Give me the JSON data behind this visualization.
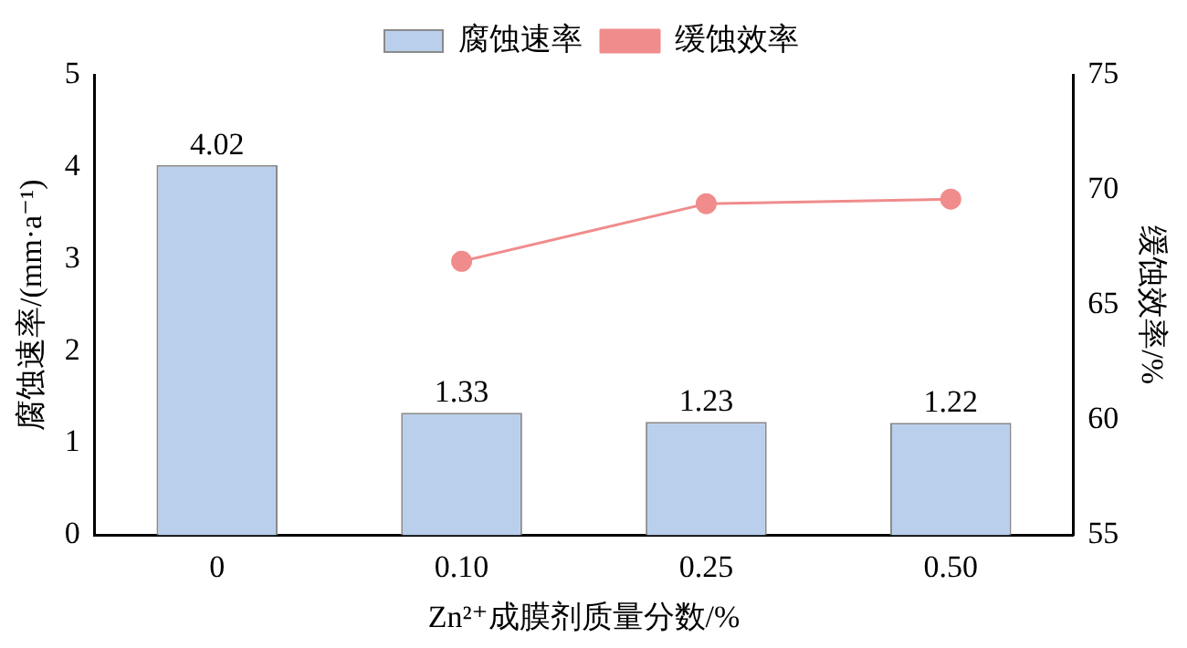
{
  "chart_data": {
    "type": "bar",
    "xlabel": "Zn²⁺成膜剂质量分数/%",
    "ylabel": "腐蚀速率/(mm·a⁻¹)",
    "y2label": "缓蚀效率/%",
    "categories": [
      "0",
      "0.10",
      "0.25",
      "0.50"
    ],
    "series": [
      {
        "name": "腐蚀速率",
        "color": "#b9cfec",
        "values": [
          4.02,
          1.33,
          1.23,
          1.22
        ],
        "value_labels": [
          "4.02",
          "1.33",
          "1.23",
          "1.22"
        ]
      },
      {
        "name": "缓蚀效率",
        "type": "line",
        "axis": "y2",
        "color": "#f08c8c",
        "values": [
          null,
          66.9,
          69.4,
          69.6
        ],
        "marker": "circle"
      }
    ],
    "ylim": [
      0,
      5
    ],
    "yticks": [
      0,
      1,
      2,
      3,
      4,
      5
    ],
    "y2lim": [
      55,
      75
    ],
    "y2ticks": [
      55,
      60,
      65,
      70,
      75
    ],
    "grid": false,
    "legend": "top"
  }
}
